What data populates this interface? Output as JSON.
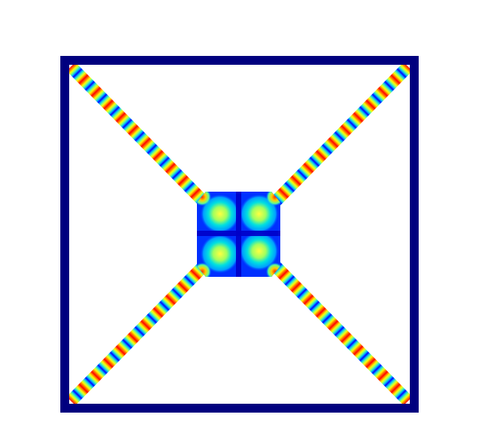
{
  "figure": {
    "description_type": "field-plot",
    "colormap": "jet",
    "colors": {
      "frame": "#00007f",
      "background": "#ffffff",
      "jet_stops": [
        "#00007f",
        "#0000ff",
        "#00bfff",
        "#00ffc0",
        "#80ff80",
        "#ffff00",
        "#ff8000",
        "#ff0000",
        "#7f0000"
      ]
    }
  }
}
